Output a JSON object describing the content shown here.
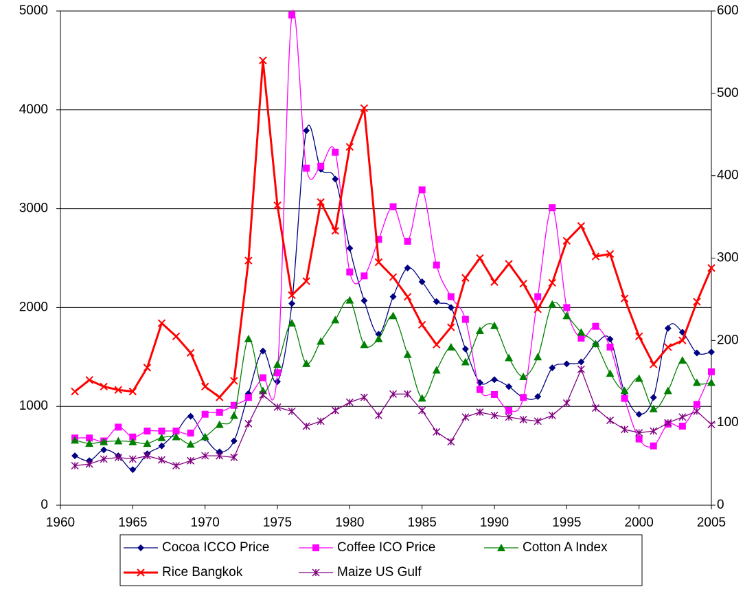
{
  "chart_data": {
    "type": "line",
    "x": [
      1961,
      1962,
      1963,
      1964,
      1965,
      1966,
      1967,
      1968,
      1969,
      1970,
      1971,
      1972,
      1973,
      1974,
      1975,
      1976,
      1977,
      1978,
      1979,
      1980,
      1981,
      1982,
      1983,
      1984,
      1985,
      1986,
      1987,
      1988,
      1989,
      1990,
      1991,
      1992,
      1993,
      1994,
      1995,
      1996,
      1997,
      1998,
      1999,
      2000,
      2001,
      2002,
      2003,
      2004,
      2005
    ],
    "xlim": [
      1960,
      2005
    ],
    "xticks": [
      1960,
      1965,
      1970,
      1975,
      1980,
      1985,
      1990,
      1995,
      2000,
      2005
    ],
    "ylim": [
      0,
      5000
    ],
    "yticks": [
      0,
      1000,
      2000,
      3000,
      4000,
      5000
    ],
    "y2lim": [
      0,
      600
    ],
    "y2ticks": [
      0,
      100,
      200,
      300,
      400,
      500,
      600
    ],
    "grid": true,
    "legend": "bottom",
    "series": [
      {
        "name": "Cocoa ICCO Price",
        "color": "#000080",
        "marker": "diamond",
        "smooth": true,
        "values": [
          500,
          450,
          560,
          500,
          360,
          520,
          600,
          740,
          900,
          680,
          540,
          650,
          1130,
          1560,
          1250,
          2040,
          3790,
          3400,
          3300,
          2600,
          2070,
          1730,
          2110,
          2400,
          2260,
          2060,
          2000,
          1580,
          1240,
          1270,
          1200,
          1090,
          1100,
          1390,
          1430,
          1450,
          1630,
          1680,
          1140,
          920,
          1090,
          1790,
          1750,
          1540,
          1550
        ]
      },
      {
        "name": "Coffee ICO Price",
        "color": "#ff00ff",
        "marker": "square",
        "smooth": true,
        "values": [
          680,
          680,
          650,
          790,
          690,
          750,
          750,
          750,
          730,
          920,
          940,
          1010,
          1090,
          1290,
          1340,
          4960,
          3410,
          3430,
          3570,
          2360,
          2320,
          2690,
          3020,
          2670,
          3190,
          2430,
          2110,
          1880,
          1170,
          1120,
          960,
          1090,
          2110,
          3010,
          2000,
          1690,
          1810,
          1600,
          1080,
          670,
          600,
          820,
          800,
          1020,
          1350
        ]
      },
      {
        "name": "Cotton A Index",
        "color": "#008000",
        "marker": "triangle",
        "smooth": true,
        "axis": "y2",
        "values": [
          79,
          75,
          77,
          78,
          77,
          75,
          82,
          83,
          74,
          83,
          98,
          109,
          202,
          139,
          171,
          221,
          172,
          199,
          225,
          249,
          195,
          202,
          230,
          183,
          130,
          164,
          192,
          174,
          212,
          218,
          179,
          156,
          180,
          244,
          230,
          210,
          196,
          160,
          139,
          154,
          117,
          139,
          176,
          149,
          149
        ]
      },
      {
        "name": "Rice Bangkok",
        "color": "#ff0000",
        "marker": "x",
        "smooth": false,
        "axis": "y2",
        "line_width": 3,
        "values": [
          138,
          152,
          144,
          140,
          138,
          167,
          221,
          205,
          185,
          144,
          131,
          151,
          297,
          540,
          364,
          255,
          272,
          368,
          333,
          435,
          482,
          295,
          277,
          253,
          219,
          195,
          216,
          276,
          300,
          271,
          293,
          269,
          238,
          270,
          321,
          339,
          302,
          305,
          251,
          205,
          171,
          192,
          200,
          247,
          288
        ]
      },
      {
        "name": "Maize US Gulf",
        "color": "#800080",
        "marker": "asterisk",
        "smooth": false,
        "axis": "y2",
        "values": [
          48,
          50,
          56,
          58,
          56,
          60,
          55,
          48,
          54,
          60,
          60,
          58,
          99,
          134,
          119,
          114,
          96,
          102,
          115,
          125,
          131,
          109,
          135,
          135,
          115,
          89,
          77,
          107,
          113,
          109,
          107,
          104,
          102,
          109,
          124,
          165,
          118,
          103,
          92,
          88,
          90,
          100,
          107,
          114,
          98
        ]
      }
    ]
  }
}
